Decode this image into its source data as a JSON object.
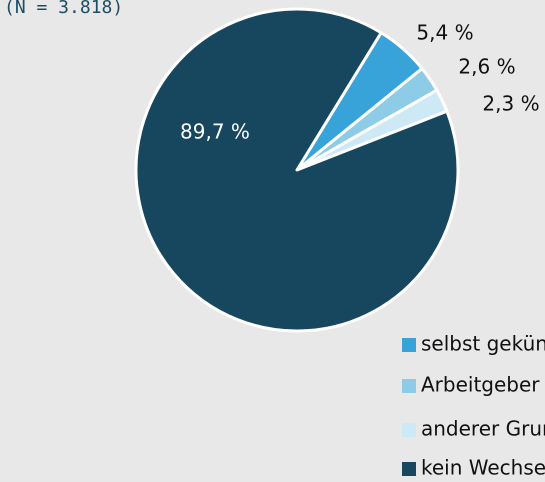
{
  "chart_data": {
    "type": "pie",
    "title": "(N = 3.818)",
    "categories": [
      "selbst gekündigt",
      "Arbeitgeber hat gekündigt",
      "anderer Grund",
      "kein Wechsel"
    ],
    "values": [
      5.4,
      2.6,
      2.3,
      89.7
    ],
    "value_labels": [
      "5,4 %",
      "2,6 %",
      "2,3 %",
      "89,7 %"
    ],
    "colors": [
      "#38a3d8",
      "#8ecbe6",
      "#cde9f6",
      "#17475f"
    ],
    "legend": "bottom"
  }
}
